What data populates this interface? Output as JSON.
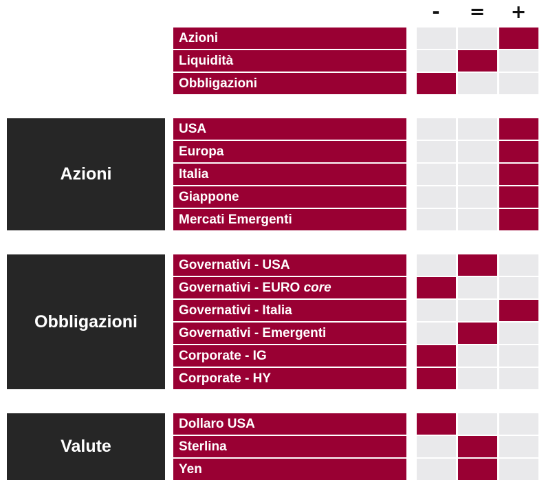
{
  "header": {
    "minus": "-",
    "equal": "=",
    "plus": "+"
  },
  "colors": {
    "accent": "#990033",
    "dark": "#262626",
    "empty": "#e9e9eb"
  },
  "groups": [
    {
      "category": "",
      "rows": [
        {
          "label": "Azioni",
          "signal": "+"
        },
        {
          "label": "Liquidità",
          "signal": "="
        },
        {
          "label": "Obbligazioni",
          "signal": "-"
        }
      ]
    },
    {
      "category": "Azioni",
      "rows": [
        {
          "label": "USA",
          "signal": "+"
        },
        {
          "label": "Europa",
          "signal": "+"
        },
        {
          "label": "Italia",
          "signal": "+"
        },
        {
          "label": "Giappone",
          "signal": "+"
        },
        {
          "label": "Mercati Emergenti",
          "signal": "+"
        }
      ]
    },
    {
      "category": "Obbligazioni",
      "rows": [
        {
          "label": "Governativi - USA",
          "signal": "="
        },
        {
          "label": "Governativi - EURO",
          "label_italic": "core",
          "signal": "-"
        },
        {
          "label": "Governativi - Italia",
          "signal": "+"
        },
        {
          "label": "Governativi - Emergenti",
          "signal": "="
        },
        {
          "label": "Corporate - IG",
          "signal": "-"
        },
        {
          "label": "Corporate - HY",
          "signal": "-"
        }
      ]
    },
    {
      "category": "Valute",
      "rows": [
        {
          "label": "Dollaro USA",
          "signal": "-"
        },
        {
          "label": "Sterlina",
          "signal": "="
        },
        {
          "label": "Yen",
          "signal": "="
        }
      ]
    }
  ]
}
